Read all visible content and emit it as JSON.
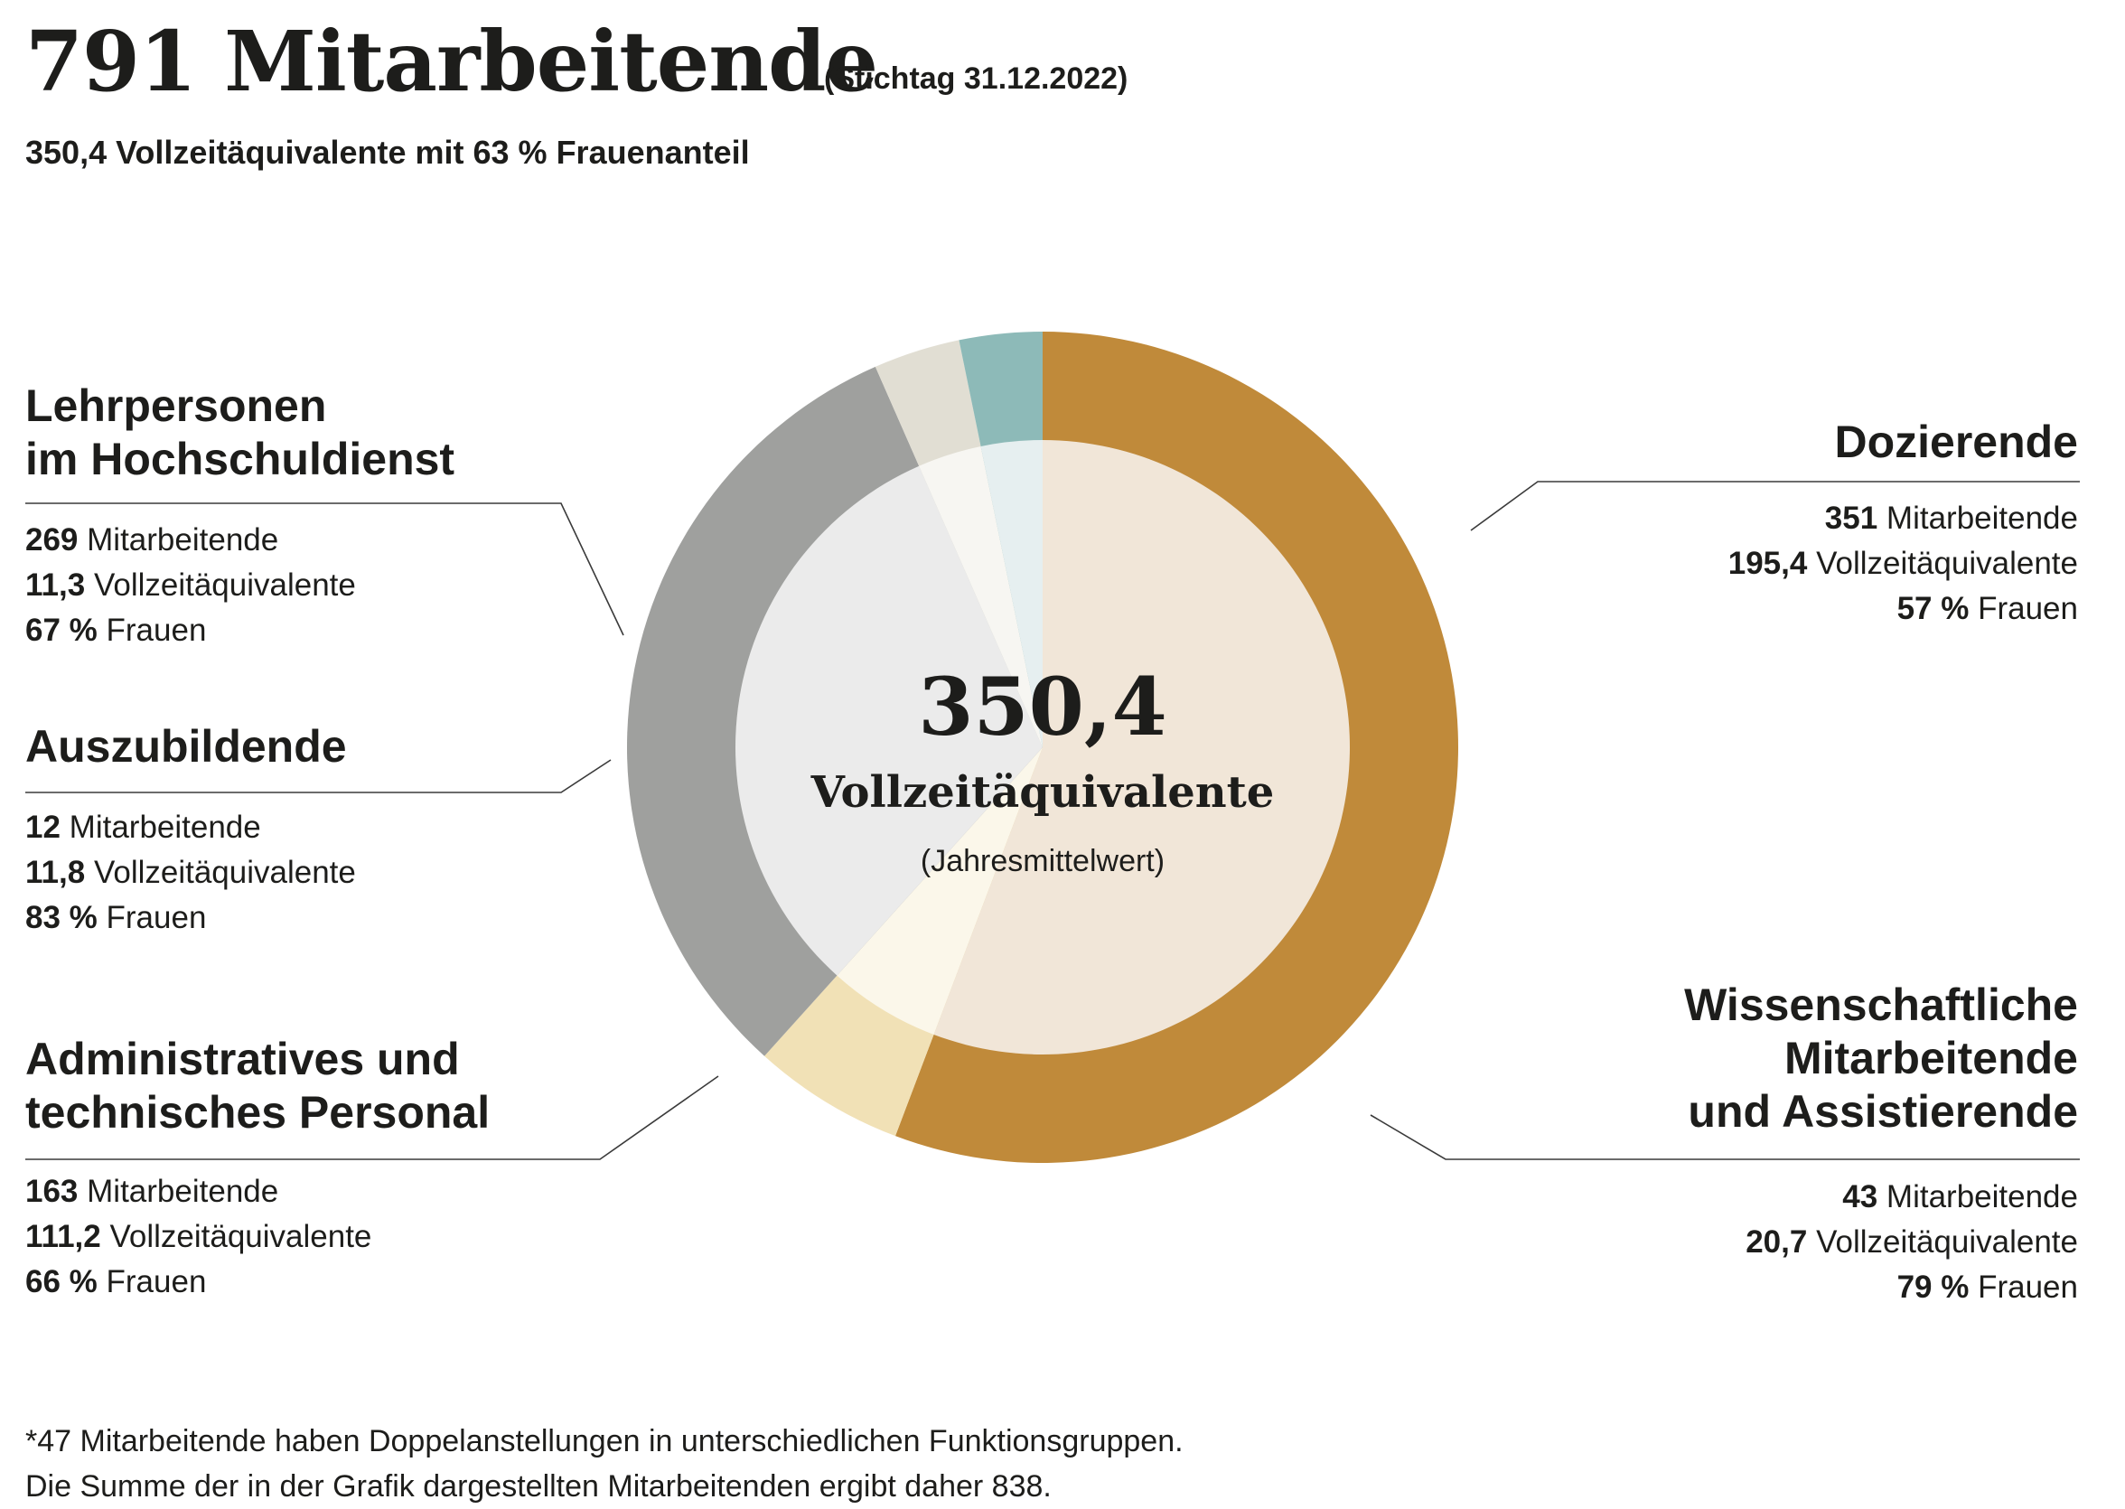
{
  "header": {
    "title": "791 Mitarbeitende",
    "stichtag": "(Stichtag 31.12.2022)",
    "subtitle": "350,4 Vollzeitäquivalente mit 63 % Frauenanteil"
  },
  "center": {
    "value": "350,4",
    "label": "Vollzeitäquivalente",
    "note": "(Jahresmittelwert)"
  },
  "footnote": {
    "line1": "*47 Mitarbeitende haben Doppelanstellungen in unterschiedlichen Funktionsgruppen.",
    "line2": "Die Summe der in der Grafik dargestellten Mitarbeitenden ergibt daher 838."
  },
  "groups": {
    "dozierende": {
      "title": "Dozierende",
      "staff_num": "351",
      "staff_text": "Mitarbeitende",
      "fte_num": "195,4",
      "fte_text": "Vollzeitäquivalente",
      "women_num": "57 %",
      "women_text": "Frauen"
    },
    "wissenschaftliche": {
      "title_line1": "Wissenschaftliche",
      "title_line2": "Mitarbeitende",
      "title_line3": "und Assistierende",
      "staff_num": "43",
      "staff_text": "Mitarbeitende",
      "fte_num": "20,7",
      "fte_text": "Vollzeitäquivalente",
      "women_num": "79 %",
      "women_text": "Frauen"
    },
    "administratives": {
      "title_line1": "Administratives und",
      "title_line2": "technisches Personal",
      "staff_num": "163",
      "staff_text": "Mitarbeitende",
      "fte_num": "111,2",
      "fte_text": "Vollzeitäquivalente",
      "women_num": "66 %",
      "women_text": "Frauen"
    },
    "auszubildende": {
      "title": "Auszubildende",
      "staff_num": "12",
      "staff_text": "Mitarbeitende",
      "fte_num": "11,8",
      "fte_text": "Vollzeitäquivalente",
      "women_num": "83 %",
      "women_text": "Frauen"
    },
    "lehrpersonen": {
      "title_line1": "Lehrpersonen",
      "title_line2": "im Hochschuldienst",
      "staff_num": "269",
      "staff_text": "Mitarbeitende",
      "fte_num": "11,3",
      "fte_text": "Vollzeitäquivalente",
      "women_num": "67 %",
      "women_text": "Frauen"
    }
  },
  "chart_data": {
    "type": "pie",
    "variant": "donut",
    "value_label": "Vollzeitäquivalente",
    "total": 350.4,
    "start_angle_deg": 0,
    "direction": "clockwise",
    "inner_fill": "women_share",
    "slices": [
      {
        "name": "Dozierende",
        "value": 195.4,
        "women_share": 0.57,
        "outer_color": "#c08a3a",
        "inner_color": "#f1e6d8"
      },
      {
        "name": "Wissenschaftliche Mitarbeitende und Assistierende",
        "value": 20.7,
        "women_share": 0.79,
        "outer_color": "#f1e1b6",
        "inner_color": "#fbf7ea"
      },
      {
        "name": "Administratives und technisches Personal",
        "value": 111.2,
        "women_share": 0.66,
        "outer_color": "#9fa09e",
        "inner_color": "#ebebeb"
      },
      {
        "name": "Auszubildende",
        "value": 11.8,
        "women_share": 0.83,
        "outer_color": "#e1ded3",
        "inner_color": "#f7f6f2"
      },
      {
        "name": "Lehrpersonen im Hochschuldienst",
        "value": 11.3,
        "women_share": 0.67,
        "outer_color": "#8dbab8",
        "inner_color": "#e6eff0"
      }
    ]
  }
}
